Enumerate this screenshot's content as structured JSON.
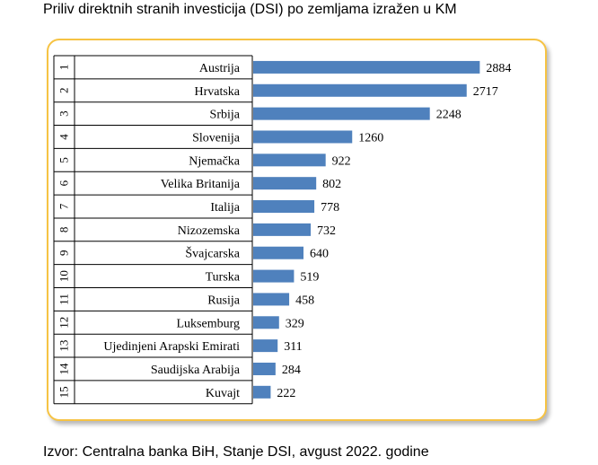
{
  "title": "Priliv direktnih stranih investicija (DSI) po zemljama izražen u KM",
  "source": "Izvor: Centralna banka BiH, Stanje DSI, avgust 2022. godine",
  "colors": {
    "bar": "#4f81bd",
    "frame_border": "#f6c343",
    "grid": "#000000"
  },
  "chart_data": {
    "type": "bar",
    "orientation": "horizontal",
    "ranks": [
      "1",
      "2",
      "3",
      "4",
      "5",
      "6",
      "7",
      "8",
      "9",
      "10",
      "11",
      "12",
      "13",
      "14",
      "15"
    ],
    "categories": [
      "Austrija",
      "Hrvatska",
      "Srbija",
      "Slovenija",
      "Njemačka",
      "Velika Britanija",
      "Italija",
      "Nizozemska",
      "Švajcarska",
      "Turska",
      "Rusija",
      "Luksemburg",
      "Ujedinjeni Arapski Emirati",
      "Saudijska Arabija",
      "Kuvajt"
    ],
    "values": [
      2884,
      2717,
      2248,
      1260,
      922,
      802,
      778,
      732,
      640,
      519,
      458,
      329,
      311,
      284,
      222
    ],
    "xlim": [
      0,
      3200
    ],
    "data_labels": true,
    "legend": false,
    "grid": false
  }
}
